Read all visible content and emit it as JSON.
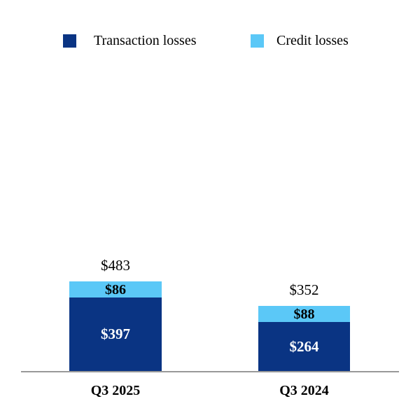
{
  "chart_data": {
    "type": "bar",
    "stacked": true,
    "categories": [
      "Q3 2025",
      "Q3 2024"
    ],
    "series": [
      {
        "name": "Transaction losses",
        "values": [
          397,
          264
        ],
        "color": "#0a3483",
        "label_color": "#ffffff"
      },
      {
        "name": "Credit losses",
        "values": [
          86,
          88
        ],
        "color": "#5bc8f7",
        "label_color": "#000000"
      }
    ],
    "totals": [
      483,
      352
    ],
    "value_prefix": "$",
    "legend_position": "top",
    "axis": {
      "baseline": true,
      "gridlines": false,
      "color": "#999999"
    },
    "background": "#ffffff"
  },
  "display": {
    "bars": [
      {
        "category": "Q3 2025",
        "total": "$483",
        "segments": {
          "transaction": "$397",
          "credit": "$86"
        }
      },
      {
        "category": "Q3 2024",
        "total": "$352",
        "segments": {
          "transaction": "$264",
          "credit": "$88"
        }
      }
    ]
  }
}
